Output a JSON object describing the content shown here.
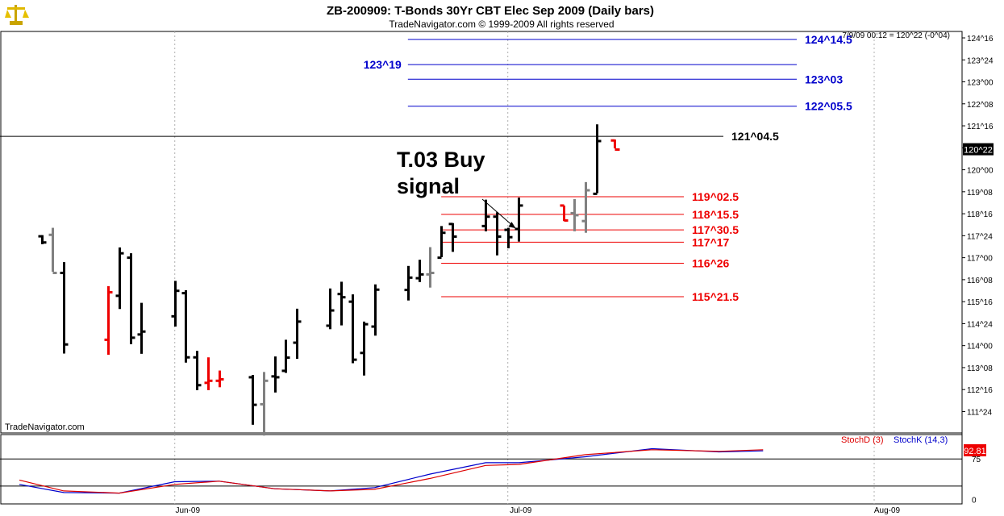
{
  "header": {
    "title": "ZB-200909:  T-Bonds 30Yr CBT Elec Sep 2009  (Daily bars)",
    "subtitle": "TradeNavigator.com © 1999-2009 All rights reserved",
    "status": "7/9/09 00:12 = 120^22 (-0^04)",
    "watermark": "TradeNavigator.com",
    "logo_icon": "scales-icon"
  },
  "chart_data": [
    {
      "type": "bar",
      "subtype": "ohlc",
      "title": "ZB-200909:  T-Bonds 30Yr CBT Elec Sep 2009  (Daily bars)",
      "x_dates": [
        "2009-05-20",
        "2009-05-21",
        "2009-05-22",
        "2009-05-26",
        "2009-05-27",
        "2009-05-28",
        "2009-05-29",
        "2009-06-01",
        "2009-06-02",
        "2009-06-03",
        "2009-06-04",
        "2009-06-05",
        "2009-06-08",
        "2009-06-09",
        "2009-06-10",
        "2009-06-11",
        "2009-06-12",
        "2009-06-15",
        "2009-06-16",
        "2009-06-17",
        "2009-06-18",
        "2009-06-19",
        "2009-06-22",
        "2009-06-23",
        "2009-06-24",
        "2009-06-25",
        "2009-06-26",
        "2009-06-29",
        "2009-06-30",
        "2009-07-01",
        "2009-07-02",
        "2009-07-06",
        "2009-07-07",
        "2009-07-08",
        "2009-07-09"
      ],
      "x_ticks": [
        {
          "date": "2009-06-01",
          "label": "Jun-09"
        },
        {
          "date": "2009-07-01",
          "label": "Jul-09"
        },
        {
          "date": "2009-08-03",
          "label": "Aug-09"
        }
      ],
      "bars": [
        {
          "o": 117.73,
          "h": 117.77,
          "l": 117.46,
          "c": 117.52,
          "color": "#000000"
        },
        {
          "o": 117.78,
          "h": 118.02,
          "l": 116.52,
          "c": 116.48,
          "color": "#808080"
        },
        {
          "o": 116.48,
          "h": 116.85,
          "l": 113.73,
          "c": 114.04,
          "color": "#000000"
        },
        {
          "o": 114.2,
          "h": 116.03,
          "l": 113.69,
          "c": 115.82,
          "color": "#ee0000"
        },
        {
          "o": 115.7,
          "h": 117.35,
          "l": 115.25,
          "c": 117.15,
          "color": "#000000"
        },
        {
          "o": 117.0,
          "h": 117.15,
          "l": 114.05,
          "c": 114.27,
          "color": "#000000"
        },
        {
          "o": 114.38,
          "h": 115.46,
          "l": 113.72,
          "c": 114.48,
          "color": "#000000"
        },
        {
          "o": 115.0,
          "h": 116.21,
          "l": 114.65,
          "c": 115.87,
          "color": "#000000"
        },
        {
          "o": 115.79,
          "h": 115.89,
          "l": 113.42,
          "c": 113.6,
          "color": "#000000"
        },
        {
          "o": 113.6,
          "h": 113.82,
          "l": 112.48,
          "c": 112.65,
          "color": "#000000"
        },
        {
          "o": 112.73,
          "h": 113.6,
          "l": 112.48,
          "c": 112.8,
          "color": "#ee0000"
        },
        {
          "o": 112.8,
          "h": 113.15,
          "l": 112.58,
          "c": 112.85,
          "color": "#ee0000"
        },
        {
          "o": 112.92,
          "h": 113.0,
          "l": 111.3,
          "c": 111.98,
          "color": "#000000"
        },
        {
          "o": 112.0,
          "h": 113.1,
          "l": 110.93,
          "c": 112.8,
          "color": "#808080"
        },
        {
          "o": 112.95,
          "h": 113.63,
          "l": 112.4,
          "c": 112.92,
          "color": "#000000"
        },
        {
          "o": 113.14,
          "h": 114.2,
          "l": 113.07,
          "c": 113.59,
          "color": "#000000"
        },
        {
          "o": 114.1,
          "h": 115.26,
          "l": 113.55,
          "c": 114.82,
          "color": "#000000"
        },
        {
          "o": 114.68,
          "h": 115.95,
          "l": 114.56,
          "c": 115.2,
          "color": "#000000"
        },
        {
          "o": 115.76,
          "h": 116.18,
          "l": 114.69,
          "c": 115.65,
          "color": "#000000"
        },
        {
          "o": 115.5,
          "h": 115.75,
          "l": 113.4,
          "c": 113.52,
          "color": "#000000"
        },
        {
          "o": 113.75,
          "h": 114.82,
          "l": 112.98,
          "c": 114.73,
          "color": "#000000"
        },
        {
          "o": 114.65,
          "h": 116.09,
          "l": 114.34,
          "c": 115.91,
          "color": "#000000"
        },
        {
          "o": 115.9,
          "h": 116.72,
          "l": 115.54,
          "c": 116.32,
          "color": "#000000"
        },
        {
          "o": 116.3,
          "h": 116.93,
          "l": 116.17,
          "c": 116.43,
          "color": "#000000"
        },
        {
          "o": 116.43,
          "h": 117.36,
          "l": 115.98,
          "c": 116.48,
          "color": "#808080"
        },
        {
          "o": 117.0,
          "h": 118.08,
          "l": 117.02,
          "c": 117.85,
          "color": "#000000"
        },
        {
          "o": 118.15,
          "h": 118.18,
          "l": 117.2,
          "c": 117.72,
          "color": "#000000"
        },
        {
          "o": 118.08,
          "h": 118.98,
          "l": 117.9,
          "c": 118.4,
          "color": "#000000"
        },
        {
          "o": 118.4,
          "h": 118.55,
          "l": 117.08,
          "c": 117.72,
          "color": "#000000"
        },
        {
          "o": 117.95,
          "h": 118.02,
          "l": 117.32,
          "c": 117.7,
          "color": "#000000"
        },
        {
          "o": 117.98,
          "h": 119.05,
          "l": 117.55,
          "c": 118.78,
          "color": "#000000"
        },
        {
          "o": 118.78,
          "h": 118.78,
          "l": 118.25,
          "c": 118.27,
          "color": "#ee0000"
        },
        {
          "o": 118.52,
          "h": 119.0,
          "l": 117.9,
          "c": 118.45,
          "color": "#808080"
        },
        {
          "o": 118.25,
          "h": 119.58,
          "l": 117.85,
          "c": 119.3,
          "color": "#808080"
        },
        {
          "o": 119.18,
          "h": 121.55,
          "l": 119.2,
          "c": 120.98,
          "color": "#000000"
        }
      ],
      "current_bar": {
        "date": "2009-07-09",
        "o": 121.0,
        "h": 121.03,
        "l": 120.73,
        "c": 120.69,
        "color": "#ee0000"
      },
      "y_range": [
        111.02,
        124.72
      ],
      "y_ticks": [
        "111^24",
        "112^16",
        "113^08",
        "114^00",
        "114^24",
        "115^16",
        "116^08",
        "117^00",
        "117^24",
        "118^16",
        "119^08",
        "120^00",
        "120^24",
        "121^16",
        "122^08",
        "123^00",
        "123^24",
        "124^16"
      ],
      "y_tick_values": [
        111.75,
        112.5,
        113.25,
        114.0,
        114.75,
        115.5,
        116.25,
        117.0,
        117.75,
        118.5,
        119.25,
        120.0,
        120.75,
        121.5,
        122.25,
        123.0,
        123.75,
        124.5
      ],
      "last_price_label": "120^22",
      "last_price": 120.6875,
      "levels": [
        {
          "value": 124.45,
          "label": "124^14.5",
          "color": "#0000cc",
          "from": "2009-06-22",
          "label_side": "right"
        },
        {
          "value": 123.59,
          "label": "123^19",
          "color": "#0000cc",
          "from": "2009-06-22",
          "label_side": "left"
        },
        {
          "value": 123.09,
          "label": "123^03",
          "color": "#0000cc",
          "from": "2009-06-22",
          "label_side": "right"
        },
        {
          "value": 122.17,
          "label": "122^05.5",
          "color": "#0000cc",
          "from": "2009-06-22",
          "label_side": "right"
        },
        {
          "value": 121.14,
          "label": "121^04.5",
          "color": "#000000",
          "from": "2009-05-18",
          "label_side": "right"
        },
        {
          "value": 119.08,
          "label": "119^02.5",
          "color": "#ee0000",
          "from": "2009-06-25",
          "label_side": "right"
        },
        {
          "value": 118.48,
          "label": "118^15.5",
          "color": "#ee0000",
          "from": "2009-06-25",
          "label_side": "right"
        },
        {
          "value": 117.95,
          "label": "117^30.5",
          "color": "#ee0000",
          "from": "2009-06-25",
          "label_side": "right"
        },
        {
          "value": 117.53,
          "label": "117^17",
          "color": "#ee0000",
          "from": "2009-06-25",
          "label_side": "right"
        },
        {
          "value": 116.81,
          "label": "116^26",
          "color": "#ee0000",
          "from": "2009-06-25",
          "label_side": "right"
        },
        {
          "value": 115.67,
          "label": "115^21.5",
          "color": "#ee0000",
          "from": "2009-06-25",
          "label_side": "right"
        }
      ],
      "annotation": {
        "line1": "T.03 Buy",
        "line2": "signal",
        "arrow_to_date": "2009-07-02",
        "arrow_to_value": 117.95
      }
    },
    {
      "type": "line",
      "title": "Stochastic",
      "y_range": [
        -8,
        120
      ],
      "y_ticks": [
        0,
        75
      ],
      "reference_lines": [
        25,
        75
      ],
      "legend": [
        "StochD (3)",
        "StochK (14,3)"
      ],
      "last_value_label": "92.81",
      "x_dates": [
        "2009-05-18",
        "2009-05-22",
        "2009-05-27",
        "2009-06-01",
        "2009-06-05",
        "2009-06-10",
        "2009-06-15",
        "2009-06-19",
        "2009-06-24",
        "2009-06-29",
        "2009-07-02",
        "2009-07-08",
        "2009-07-14",
        "2009-07-20",
        "2009-07-24"
      ],
      "series": [
        {
          "name": "StochK (14,3)",
          "color": "#0000cc",
          "values": [
            28,
            13,
            12,
            33,
            34,
            20,
            16,
            22,
            47,
            68,
            68,
            79,
            94,
            88,
            90
          ]
        },
        {
          "name": "StochD (3)",
          "color": "#dd0000",
          "values": [
            36,
            16,
            12,
            28,
            34,
            20,
            16,
            19,
            39,
            63,
            65,
            83,
            92,
            89,
            92
          ]
        }
      ]
    }
  ],
  "styles": {
    "frame_color": "#000000",
    "grid_color": "#c0c0c0",
    "bg": "#ffffff",
    "axis_bg": "#ffffff"
  }
}
